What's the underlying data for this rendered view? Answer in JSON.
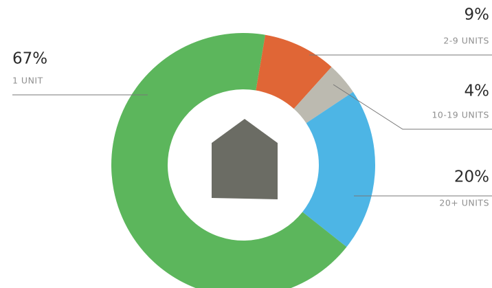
{
  "chart_data": {
    "type": "donut",
    "categories": [
      "1 UNIT",
      "2-9 UNITS",
      "10-19 UNITS",
      "20+ UNITS"
    ],
    "values": [
      67,
      9,
      4,
      20
    ],
    "value_labels": [
      "67%",
      "9%",
      "4%",
      "20%"
    ],
    "colors": [
      "#5cb65c",
      "#e06636",
      "#bcbab0",
      "#4db5e5"
    ]
  }
}
